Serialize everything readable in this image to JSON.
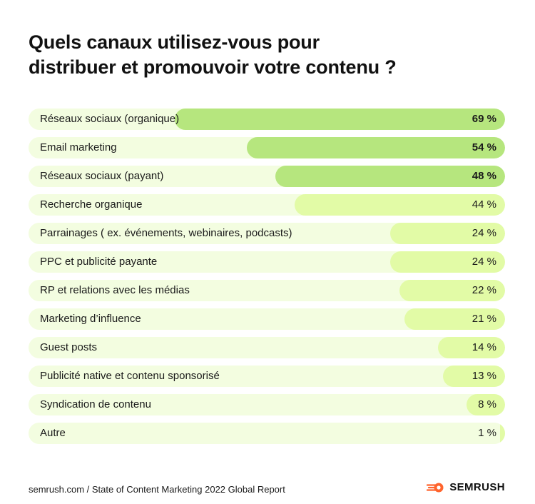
{
  "title_line1": "Quels canaux utilisez-vous pour",
  "title_line2": "distribuer et promouvoir votre contenu ?",
  "footer": {
    "source": "semrush.com / State of Content Marketing 2022 Global Report",
    "logo_text": "SEMRUSH"
  },
  "colors": {
    "track": "#f3fde0",
    "highlight_bar": "#b6e67e",
    "normal_bar": "#e2fba6",
    "logo_orange": "#ff642d"
  },
  "chart_data": {
    "type": "bar",
    "orientation": "horizontal",
    "title": "Quels canaux utilisez-vous pour distribuer et promouvoir votre contenu ?",
    "xlim": [
      0,
      100
    ],
    "unit": "%",
    "highlighted_top": 3,
    "categories": [
      "Réseaux sociaux (organique)",
      "Email marketing",
      "Réseaux sociaux (payant)",
      "Recherche organique",
      "Parrainages ( ex. événements, webinaires, podcasts)",
      "PPC et publicité payante",
      "RP et relations avec les médias",
      "Marketing d’influence",
      "Guest posts",
      "Publicité native et contenu sponsorisé",
      "Syndication de contenu",
      "Autre"
    ],
    "values": [
      69,
      54,
      48,
      44,
      24,
      24,
      22,
      21,
      14,
      13,
      8,
      1
    ],
    "value_labels": [
      "69 %",
      "54 %",
      "48 %",
      "44 %",
      "24 %",
      "24 %",
      "22 %",
      "21 %",
      "14 %",
      "13 %",
      "8 %",
      "1 %"
    ]
  }
}
